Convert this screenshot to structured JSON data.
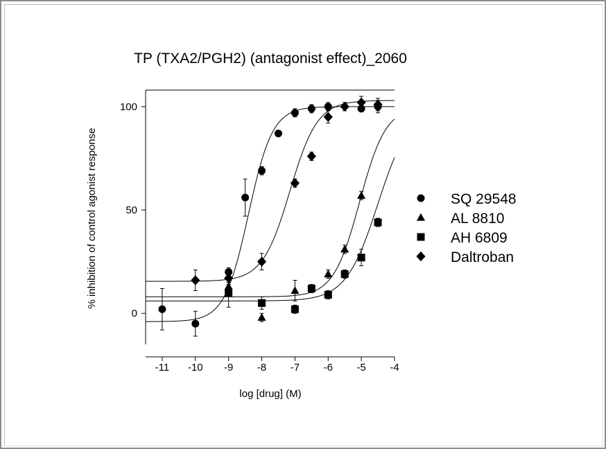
{
  "chart_data": {
    "type": "scatter",
    "title": "TP (TXA2/PGH2) (antagonist effect)_2060",
    "xlabel": "log [drug]  (M)",
    "ylabel": "% inhibition of control agonist response",
    "xlim": [
      -11.5,
      -4
    ],
    "ylim": [
      -15,
      108
    ],
    "xticks": [
      -11,
      -10,
      -9,
      -8,
      -7,
      -6,
      -5,
      -4
    ],
    "xtick_labels": [
      "-11",
      "-10",
      "-9",
      "-8",
      "-7",
      "-6",
      "-5",
      "-4"
    ],
    "yticks": [
      0,
      50,
      100
    ],
    "ytick_labels": [
      "0",
      "50",
      "100"
    ],
    "legend_position": "right",
    "series": [
      {
        "name": "SQ 29548",
        "marker": "circle",
        "points": [
          {
            "x": -11,
            "y": 2,
            "err": 10
          },
          {
            "x": -10,
            "y": -5,
            "err": 6
          },
          {
            "x": -9,
            "y": 20,
            "err": 2
          },
          {
            "x": -8.5,
            "y": 56,
            "err": 9
          },
          {
            "x": -8,
            "y": 69,
            "err": 2
          },
          {
            "x": -7.5,
            "y": 87,
            "err": 1
          },
          {
            "x": -7,
            "y": 97,
            "err": 2
          },
          {
            "x": -6.5,
            "y": 99,
            "err": 2
          },
          {
            "x": -6,
            "y": 100,
            "err": 2
          },
          {
            "x": -5,
            "y": 99,
            "err": 1
          },
          {
            "x": -4.5,
            "y": 100,
            "err": 3
          }
        ],
        "fit": {
          "bottom": -4,
          "top": 100,
          "logec50": -8.4,
          "hill": 1.2
        }
      },
      {
        "name": "AL 8810",
        "marker": "triangle",
        "points": [
          {
            "x": -9,
            "y": 13,
            "err": 2
          },
          {
            "x": -8,
            "y": -2,
            "err": 2
          },
          {
            "x": -7,
            "y": 11,
            "err": 5
          },
          {
            "x": -6,
            "y": 19,
            "err": 2
          },
          {
            "x": -5.5,
            "y": 31,
            "err": 2
          },
          {
            "x": -5,
            "y": 57,
            "err": 2
          }
        ],
        "fit": {
          "bottom": 8,
          "top": 100,
          "logec50": -5.05,
          "hill": 1.1
        }
      },
      {
        "name": "AH 6809",
        "marker": "square",
        "points": [
          {
            "x": -9,
            "y": 10,
            "err": 7
          },
          {
            "x": -8,
            "y": 5,
            "err": 3
          },
          {
            "x": -7,
            "y": 2,
            "err": 2
          },
          {
            "x": -6.5,
            "y": 12,
            "err": 2
          },
          {
            "x": -6,
            "y": 9,
            "err": 2
          },
          {
            "x": -5.5,
            "y": 19,
            "err": 2
          },
          {
            "x": -5,
            "y": 27,
            "err": 4
          },
          {
            "x": -4.5,
            "y": 44,
            "err": 2
          }
        ],
        "fit": {
          "bottom": 6,
          "top": 100,
          "logec50": -4.5,
          "hill": 0.9
        }
      },
      {
        "name": "Daltroban",
        "marker": "diamond",
        "points": [
          {
            "x": -10,
            "y": 16,
            "err": 5
          },
          {
            "x": -9,
            "y": 17,
            "err": 3
          },
          {
            "x": -8,
            "y": 25,
            "err": 4
          },
          {
            "x": -7,
            "y": 63,
            "err": 2
          },
          {
            "x": -6.5,
            "y": 76,
            "err": 2
          },
          {
            "x": -6,
            "y": 95,
            "err": 3
          },
          {
            "x": -5.5,
            "y": 100,
            "err": 2
          },
          {
            "x": -5,
            "y": 102,
            "err": 3
          },
          {
            "x": -4.5,
            "y": 101,
            "err": 3
          }
        ],
        "fit": {
          "bottom": 15.5,
          "top": 103,
          "logec50": -7.15,
          "hill": 1.05
        }
      }
    ]
  }
}
